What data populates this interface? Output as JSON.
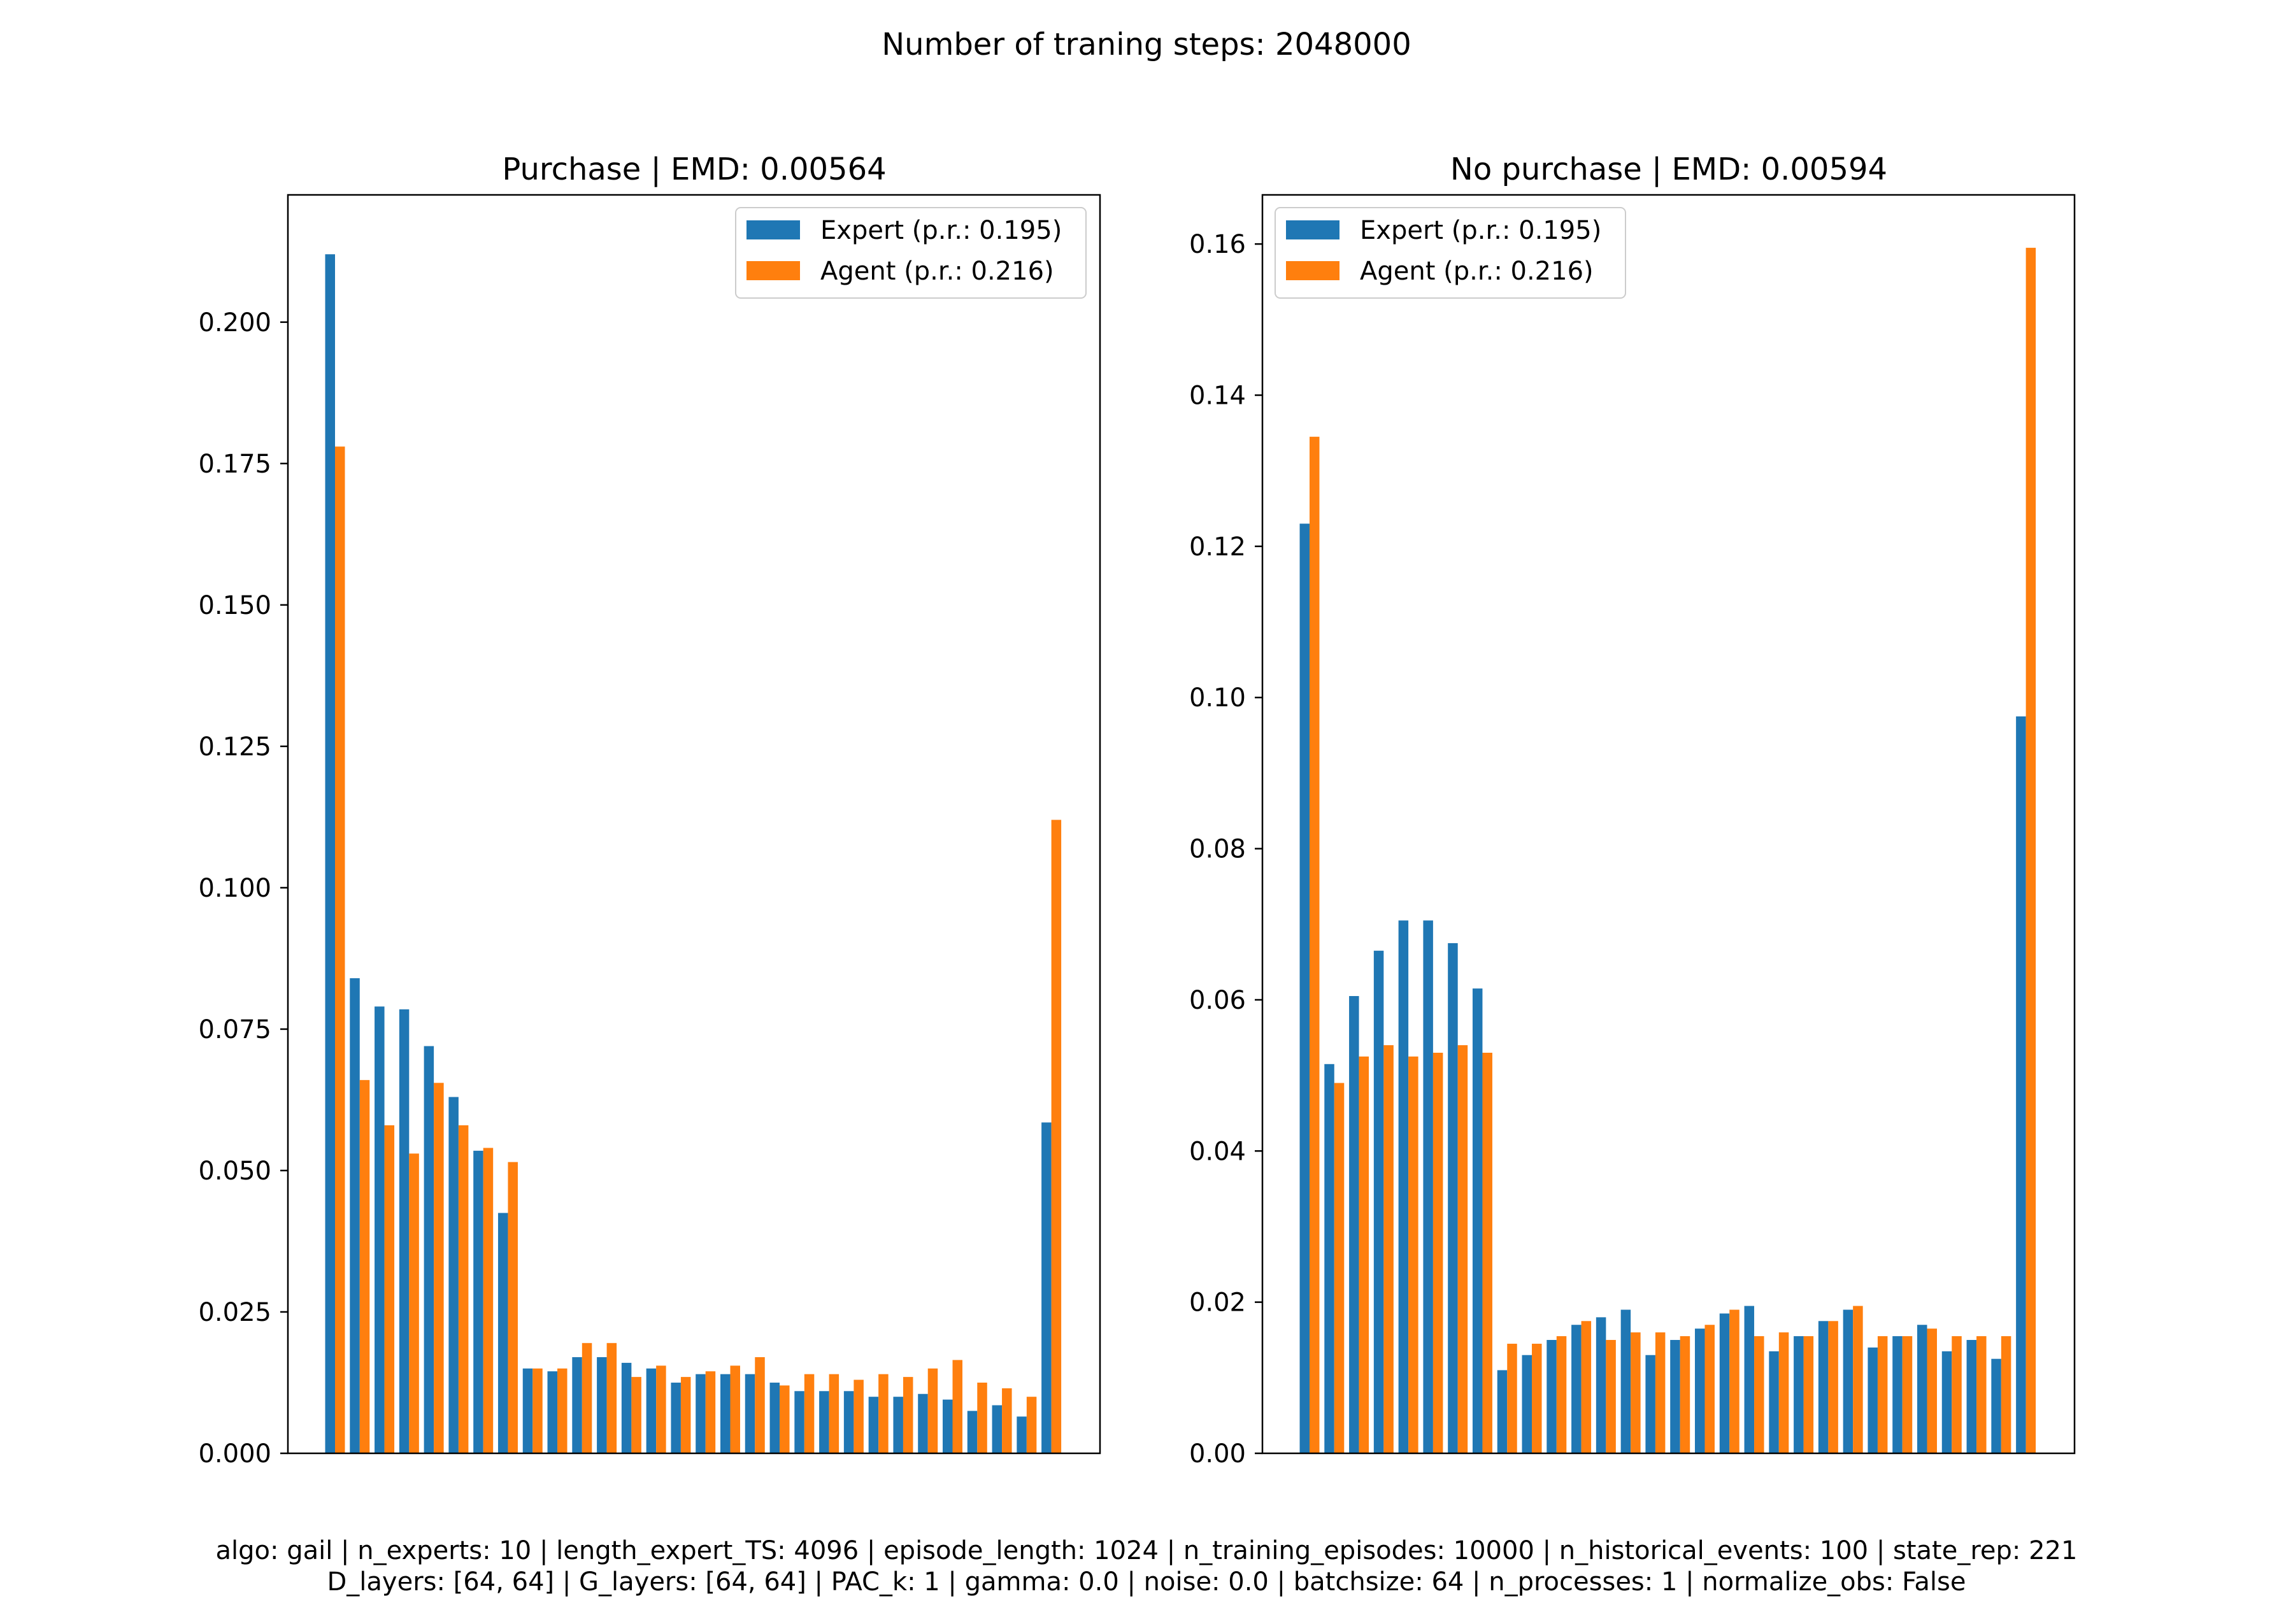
{
  "figure": {
    "suptitle": "Number of traning steps: 2048000",
    "footer_line1": "algo: gail | n_experts: 10 | length_expert_TS: 4096 | episode_length: 1024 | n_training_episodes: 10000 | n_historical_events: 100 | state_rep: 221",
    "footer_line2": "D_layers: [64, 64] | G_layers: [64, 64] | PAC_k: 1 | gamma: 0.0 | noise: 0.0 | batchsize: 64 | n_processes: 1 | normalize_obs: False",
    "colors": {
      "expert": "#1f77b4",
      "agent": "#ff7f0e"
    }
  },
  "chart_data": [
    {
      "type": "bar",
      "title": "Purchase | EMD: 0.00564",
      "xlabel": "",
      "ylabel": "",
      "ylim": [
        0,
        0.2225
      ],
      "yticks": [
        0.0,
        0.025,
        0.05,
        0.075,
        0.1,
        0.125,
        0.15,
        0.175,
        0.2
      ],
      "ytick_labels": [
        "0.000",
        "0.025",
        "0.050",
        "0.075",
        "0.100",
        "0.125",
        "0.150",
        "0.175",
        "0.200"
      ],
      "legend_position": "top-right",
      "grid": false,
      "series": [
        {
          "name": "Expert (p.r.: 0.195)",
          "values": [
            0.212,
            0.084,
            0.079,
            0.0785,
            0.072,
            0.063,
            0.0535,
            0.0425,
            0.015,
            0.0145,
            0.017,
            0.017,
            0.016,
            0.015,
            0.0125,
            0.014,
            0.014,
            0.014,
            0.0125,
            0.011,
            0.011,
            0.011,
            0.01,
            0.01,
            0.0105,
            0.0095,
            0.0075,
            0.0085,
            0.0065,
            0.0585
          ]
        },
        {
          "name": "Agent (p.r.: 0.216)",
          "values": [
            0.178,
            0.066,
            0.058,
            0.053,
            0.0655,
            0.058,
            0.054,
            0.0515,
            0.015,
            0.015,
            0.0195,
            0.0195,
            0.0135,
            0.0155,
            0.0135,
            0.0145,
            0.0155,
            0.017,
            0.012,
            0.014,
            0.014,
            0.013,
            0.014,
            0.0135,
            0.015,
            0.0165,
            0.0125,
            0.0115,
            0.01,
            0.112
          ]
        }
      ]
    },
    {
      "type": "bar",
      "title": "No purchase | EMD: 0.00594",
      "xlabel": "",
      "ylabel": "",
      "ylim": [
        0,
        0.1665
      ],
      "yticks": [
        0.0,
        0.02,
        0.04,
        0.06,
        0.08,
        0.1,
        0.12,
        0.14,
        0.16
      ],
      "ytick_labels": [
        "0.00",
        "0.02",
        "0.04",
        "0.06",
        "0.08",
        "0.10",
        "0.12",
        "0.14",
        "0.16"
      ],
      "legend_position": "top-left",
      "grid": false,
      "series": [
        {
          "name": "Expert (p.r.: 0.195)",
          "values": [
            0.123,
            0.0515,
            0.0605,
            0.0665,
            0.0705,
            0.0705,
            0.0675,
            0.0615,
            0.011,
            0.013,
            0.015,
            0.017,
            0.018,
            0.019,
            0.013,
            0.015,
            0.0165,
            0.0185,
            0.0195,
            0.0135,
            0.0155,
            0.0175,
            0.019,
            0.014,
            0.0155,
            0.017,
            0.0135,
            0.015,
            0.0125,
            0.0975
          ]
        },
        {
          "name": "Agent (p.r.: 0.216)",
          "values": [
            0.1345,
            0.049,
            0.0525,
            0.054,
            0.0525,
            0.053,
            0.054,
            0.053,
            0.0145,
            0.0145,
            0.0155,
            0.0175,
            0.015,
            0.016,
            0.016,
            0.0155,
            0.017,
            0.019,
            0.0155,
            0.016,
            0.0155,
            0.0175,
            0.0195,
            0.0155,
            0.0155,
            0.0165,
            0.0155,
            0.0155,
            0.0155,
            0.1595
          ]
        }
      ]
    }
  ]
}
